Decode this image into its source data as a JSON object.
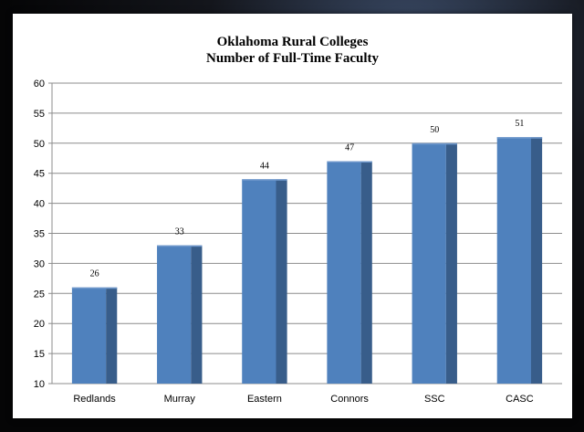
{
  "chart_data": {
    "type": "bar",
    "title_line1": "Oklahoma Rural Colleges",
    "title_line2": "Number of Full-Time Faculty",
    "categories": [
      "Redlands",
      "Murray",
      "Eastern",
      "Connors",
      "SSC",
      "CASC"
    ],
    "values": [
      26,
      33,
      44,
      47,
      50,
      51
    ],
    "ylim": [
      10,
      60
    ],
    "yticks": [
      "10",
      "15",
      "20",
      "25",
      "30",
      "35",
      "40",
      "45",
      "50",
      "55",
      "60"
    ],
    "data_labels": [
      "26",
      "33",
      "44",
      "47",
      "50",
      "51"
    ],
    "grid": true,
    "bar_color": "#4f81bd",
    "bar_side_color": "#385d8a",
    "bar_top_color": "#6f98cc"
  }
}
